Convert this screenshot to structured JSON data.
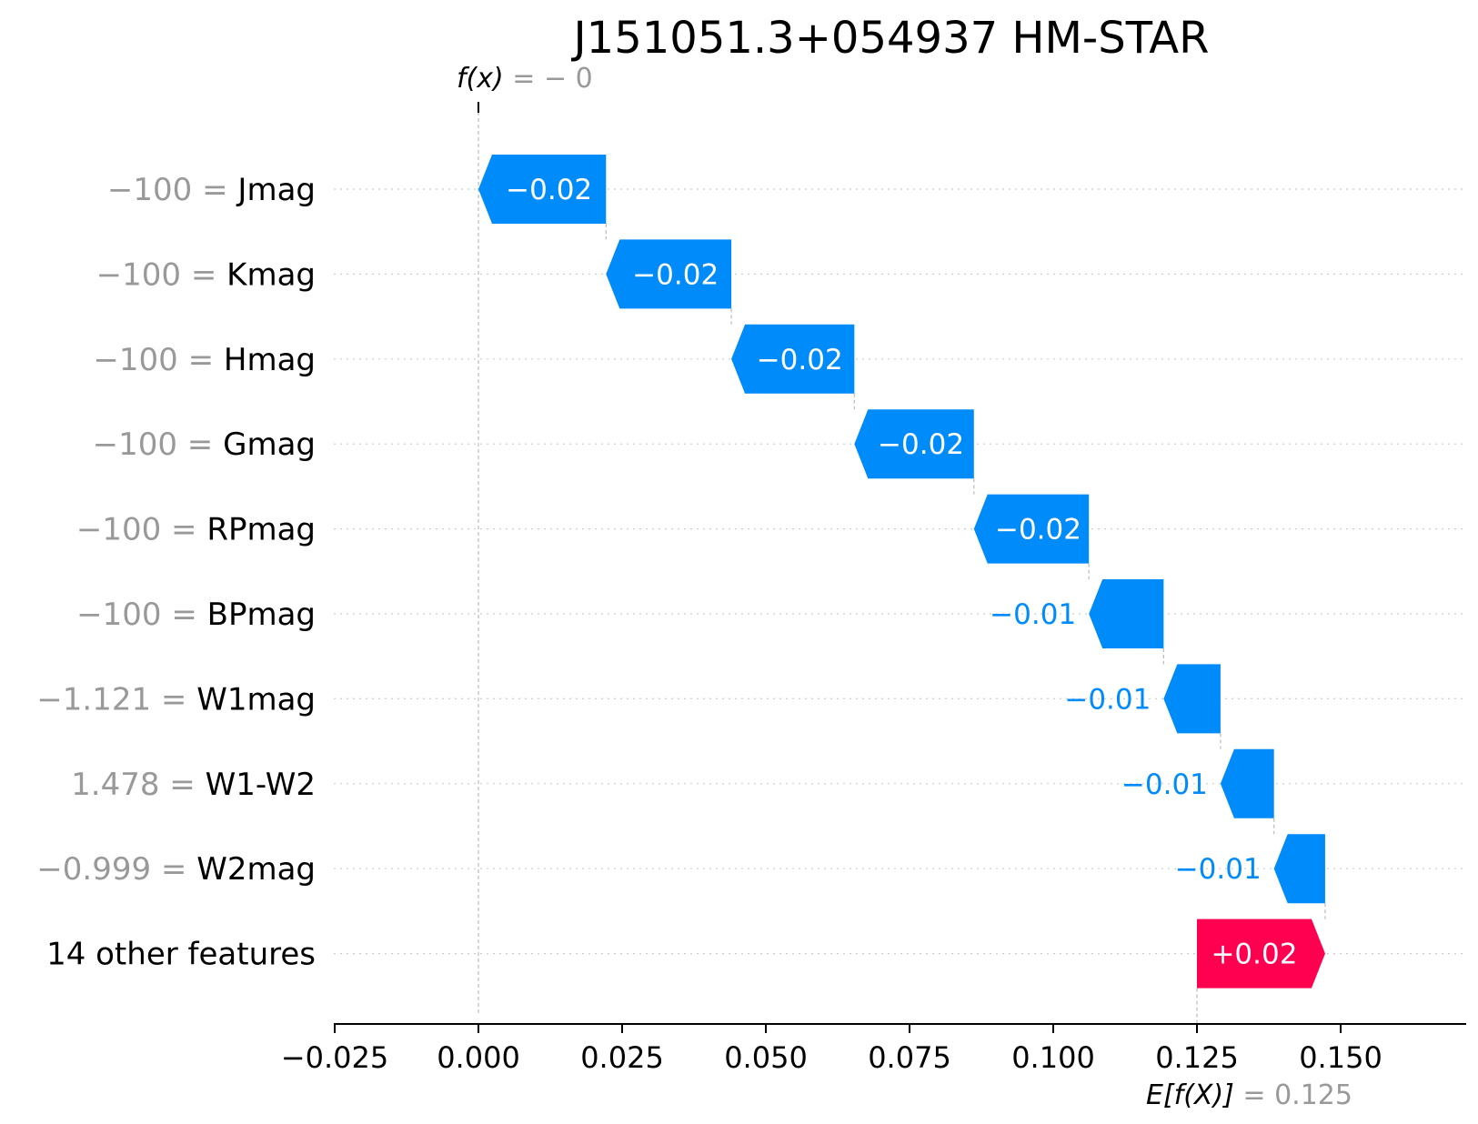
{
  "chart_data": {
    "type": "waterfall",
    "title": "J151051.3+054937 HM-STAR",
    "fx_label": "f(x)",
    "fx_value_text": "= − 0",
    "fx_value": 0,
    "base_label": "E[f(X)]",
    "base_value_text": "= 0.125",
    "base_value": 0.125,
    "xlim": [
      -0.025,
      0.172
    ],
    "xticks": [
      -0.025,
      0.0,
      0.025,
      0.05,
      0.075,
      0.1,
      0.125,
      0.15
    ],
    "xtick_labels": [
      "−0.025",
      "0.000",
      "0.025",
      "0.050",
      "0.075",
      "0.100",
      "0.125",
      "0.150"
    ],
    "colors": {
      "negative": "#008bfb",
      "positive": "#ff0051"
    },
    "features": [
      {
        "value": "−100",
        "name": "Jmag",
        "start": 0.0222,
        "end": 0.0,
        "label": "−0.02",
        "inside": true
      },
      {
        "value": "−100",
        "name": "Kmag",
        "start": 0.044,
        "end": 0.0222,
        "label": "−0.02",
        "inside": true
      },
      {
        "value": "−100",
        "name": "Hmag",
        "start": 0.0654,
        "end": 0.044,
        "label": "−0.02",
        "inside": true
      },
      {
        "value": "−100",
        "name": "Gmag",
        "start": 0.0862,
        "end": 0.0654,
        "label": "−0.02",
        "inside": true
      },
      {
        "value": "−100",
        "name": "RPmag",
        "start": 0.1062,
        "end": 0.0862,
        "label": "−0.02",
        "inside": true
      },
      {
        "value": "−100",
        "name": "BPmag",
        "start": 0.1192,
        "end": 0.1062,
        "label": "−0.01",
        "inside": false
      },
      {
        "value": "−1.121",
        "name": "W1mag",
        "start": 0.1291,
        "end": 0.1192,
        "label": "−0.01",
        "inside": false
      },
      {
        "value": "1.478",
        "name": "W1-W2",
        "start": 0.1384,
        "end": 0.1291,
        "label": "−0.01",
        "inside": false
      },
      {
        "value": "−0.999",
        "name": "W2mag",
        "start": 0.1473,
        "end": 0.1384,
        "label": "−0.01",
        "inside": false
      },
      {
        "value": "",
        "name": "14 other features",
        "start": 0.125,
        "end": 0.1473,
        "label": "+0.02",
        "inside": true
      }
    ]
  }
}
